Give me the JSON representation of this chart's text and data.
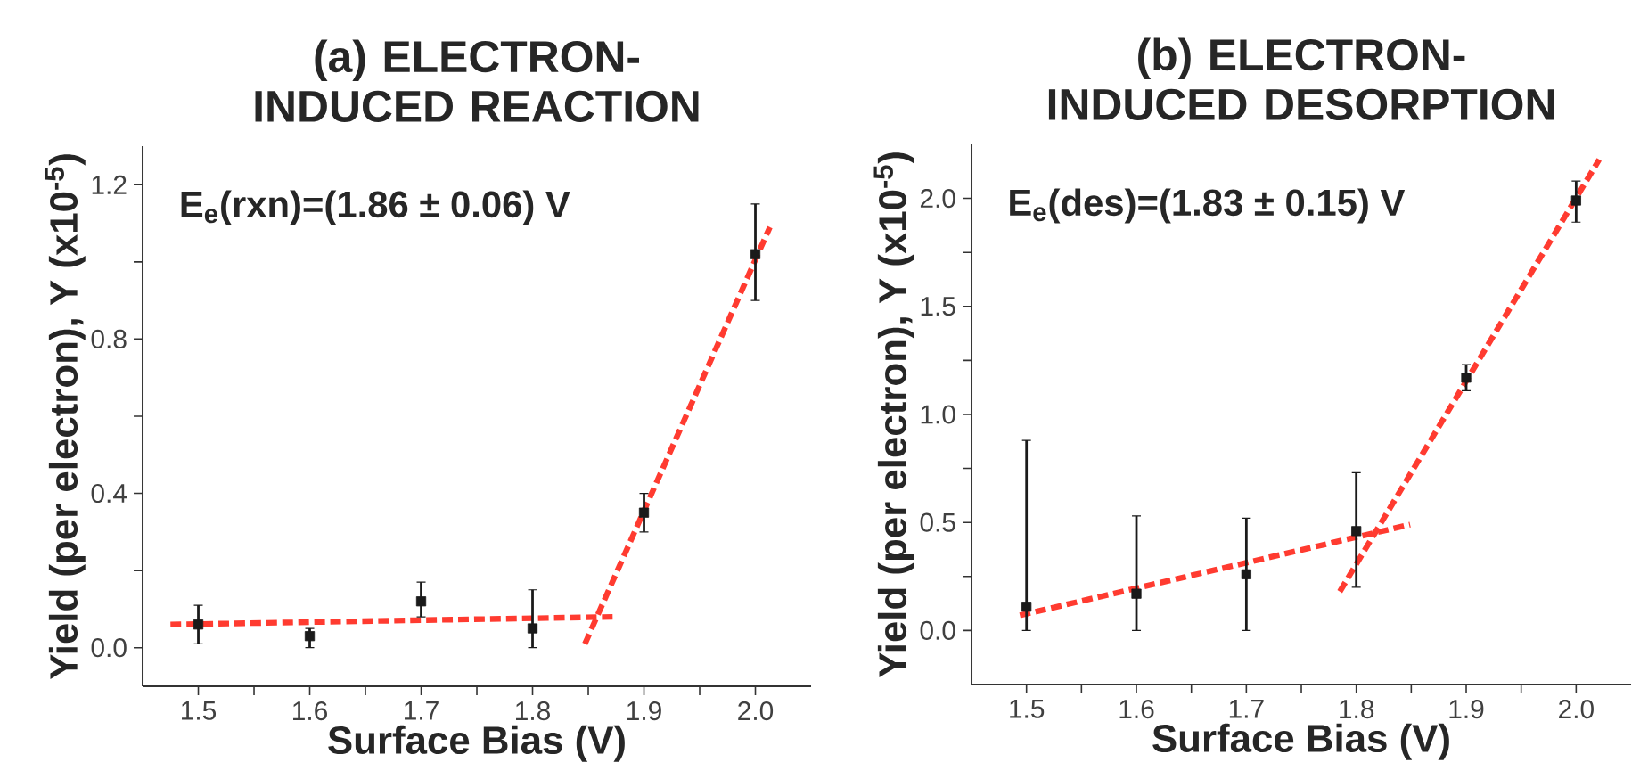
{
  "chart_data": [
    {
      "type": "scatter",
      "title": "(a) ELECTRON-INDUCED REACTION",
      "xlabel": "Surface Bias (V)",
      "ylabel": "Yield (per electron), Y (x10$^{-5}$)",
      "annotations": [
        "E$_{e}$(rxn)=(1.86 ± 0.06) V"
      ],
      "xlim": [
        1.45,
        2.05
      ],
      "ylim": [
        -0.1,
        1.3
      ],
      "xticks": [
        1.5,
        {
          "value": 1.55,
          "label": null
        },
        1.6,
        {
          "value": 1.65,
          "label": null
        },
        1.7,
        {
          "value": 1.75,
          "label": null
        },
        1.8,
        {
          "value": 1.85,
          "label": null
        },
        1.9,
        {
          "value": 1.95,
          "label": null
        },
        {
          "value": 2.0,
          "label": "2.0"
        }
      ],
      "yticks": [
        {
          "value": 0,
          "label": "0.0"
        },
        {
          "value": 0.2,
          "label": null
        },
        0.4,
        {
          "value": 0.6,
          "label": null
        },
        0.8,
        {
          "value": 1.0,
          "label": null
        },
        1.2
      ],
      "series": [
        {
          "marker": "square",
          "color": "#1a1a1a",
          "x": [
            1.5,
            1.6,
            1.7,
            1.8,
            1.9,
            2.0
          ],
          "values": [
            0.06,
            0.03,
            0.12,
            0.05,
            0.35,
            1.02
          ],
          "errors": [
            [
              0.01,
              0.11
            ],
            [
              0.0,
              0.05
            ],
            [
              0.08,
              0.17
            ],
            [
              0.0,
              0.15
            ],
            [
              0.3,
              0.4
            ],
            [
              0.9,
              1.15
            ]
          ]
        },
        {
          "type": "line",
          "line_style": "dashed",
          "color": "#ff3b30",
          "x": [
            1.475,
            1.875
          ],
          "values": [
            0.06,
            0.08
          ]
        },
        {
          "type": "line",
          "line_style": "dashed",
          "color": "#ff3b30",
          "x": [
            1.847,
            2.013
          ],
          "values": [
            0.01,
            1.09
          ]
        }
      ]
    },
    {
      "type": "scatter",
      "title": "(b) ELECTRON-INDUCED DESORPTION",
      "xlabel": "Surface Bias (V)",
      "ylabel": "Yield (per electron), Y (x10$^{-5}$)",
      "annotations": [
        "E$_{e}$(des)=(1.83 ± 0.15) V"
      ],
      "xlim": [
        1.45,
        2.05
      ],
      "ylim": [
        -0.25,
        2.25
      ],
      "xticks": [
        1.5,
        {
          "value": 1.55,
          "label": null
        },
        1.6,
        {
          "value": 1.65,
          "label": null
        },
        1.7,
        {
          "value": 1.75,
          "label": null
        },
        1.8,
        {
          "value": 1.85,
          "label": null
        },
        1.9,
        {
          "value": 1.95,
          "label": null
        },
        {
          "value": 2.0,
          "label": "2.0"
        }
      ],
      "yticks": [
        {
          "value": 0,
          "label": "0.0"
        },
        {
          "value": 0.25,
          "label": null
        },
        0.5,
        {
          "value": 0.75,
          "label": null
        },
        {
          "value": 1.0,
          "label": "1.0"
        },
        {
          "value": 1.25,
          "label": null
        },
        1.5,
        {
          "value": 1.75,
          "label": null
        },
        {
          "value": 2.0,
          "label": "2.0"
        }
      ],
      "series": [
        {
          "marker": "square",
          "color": "#1a1a1a",
          "x": [
            1.5,
            1.6,
            1.7,
            1.8,
            1.9,
            2.0
          ],
          "values": [
            0.11,
            0.17,
            0.26,
            0.46,
            1.17,
            1.99
          ],
          "errors": [
            [
              0.0,
              0.88
            ],
            [
              0.0,
              0.53
            ],
            [
              0.0,
              0.52
            ],
            [
              0.2,
              0.73
            ],
            [
              1.11,
              1.23
            ],
            [
              1.89,
              2.08
            ]
          ]
        },
        {
          "type": "line",
          "line_style": "dashed",
          "color": "#ff3b30",
          "x": [
            1.494,
            1.849
          ],
          "values": [
            0.07,
            0.49
          ]
        },
        {
          "type": "line",
          "line_style": "dashed",
          "color": "#ff3b30",
          "x": [
            1.785,
            2.021
          ],
          "values": [
            0.18,
            2.18
          ]
        }
      ]
    }
  ]
}
